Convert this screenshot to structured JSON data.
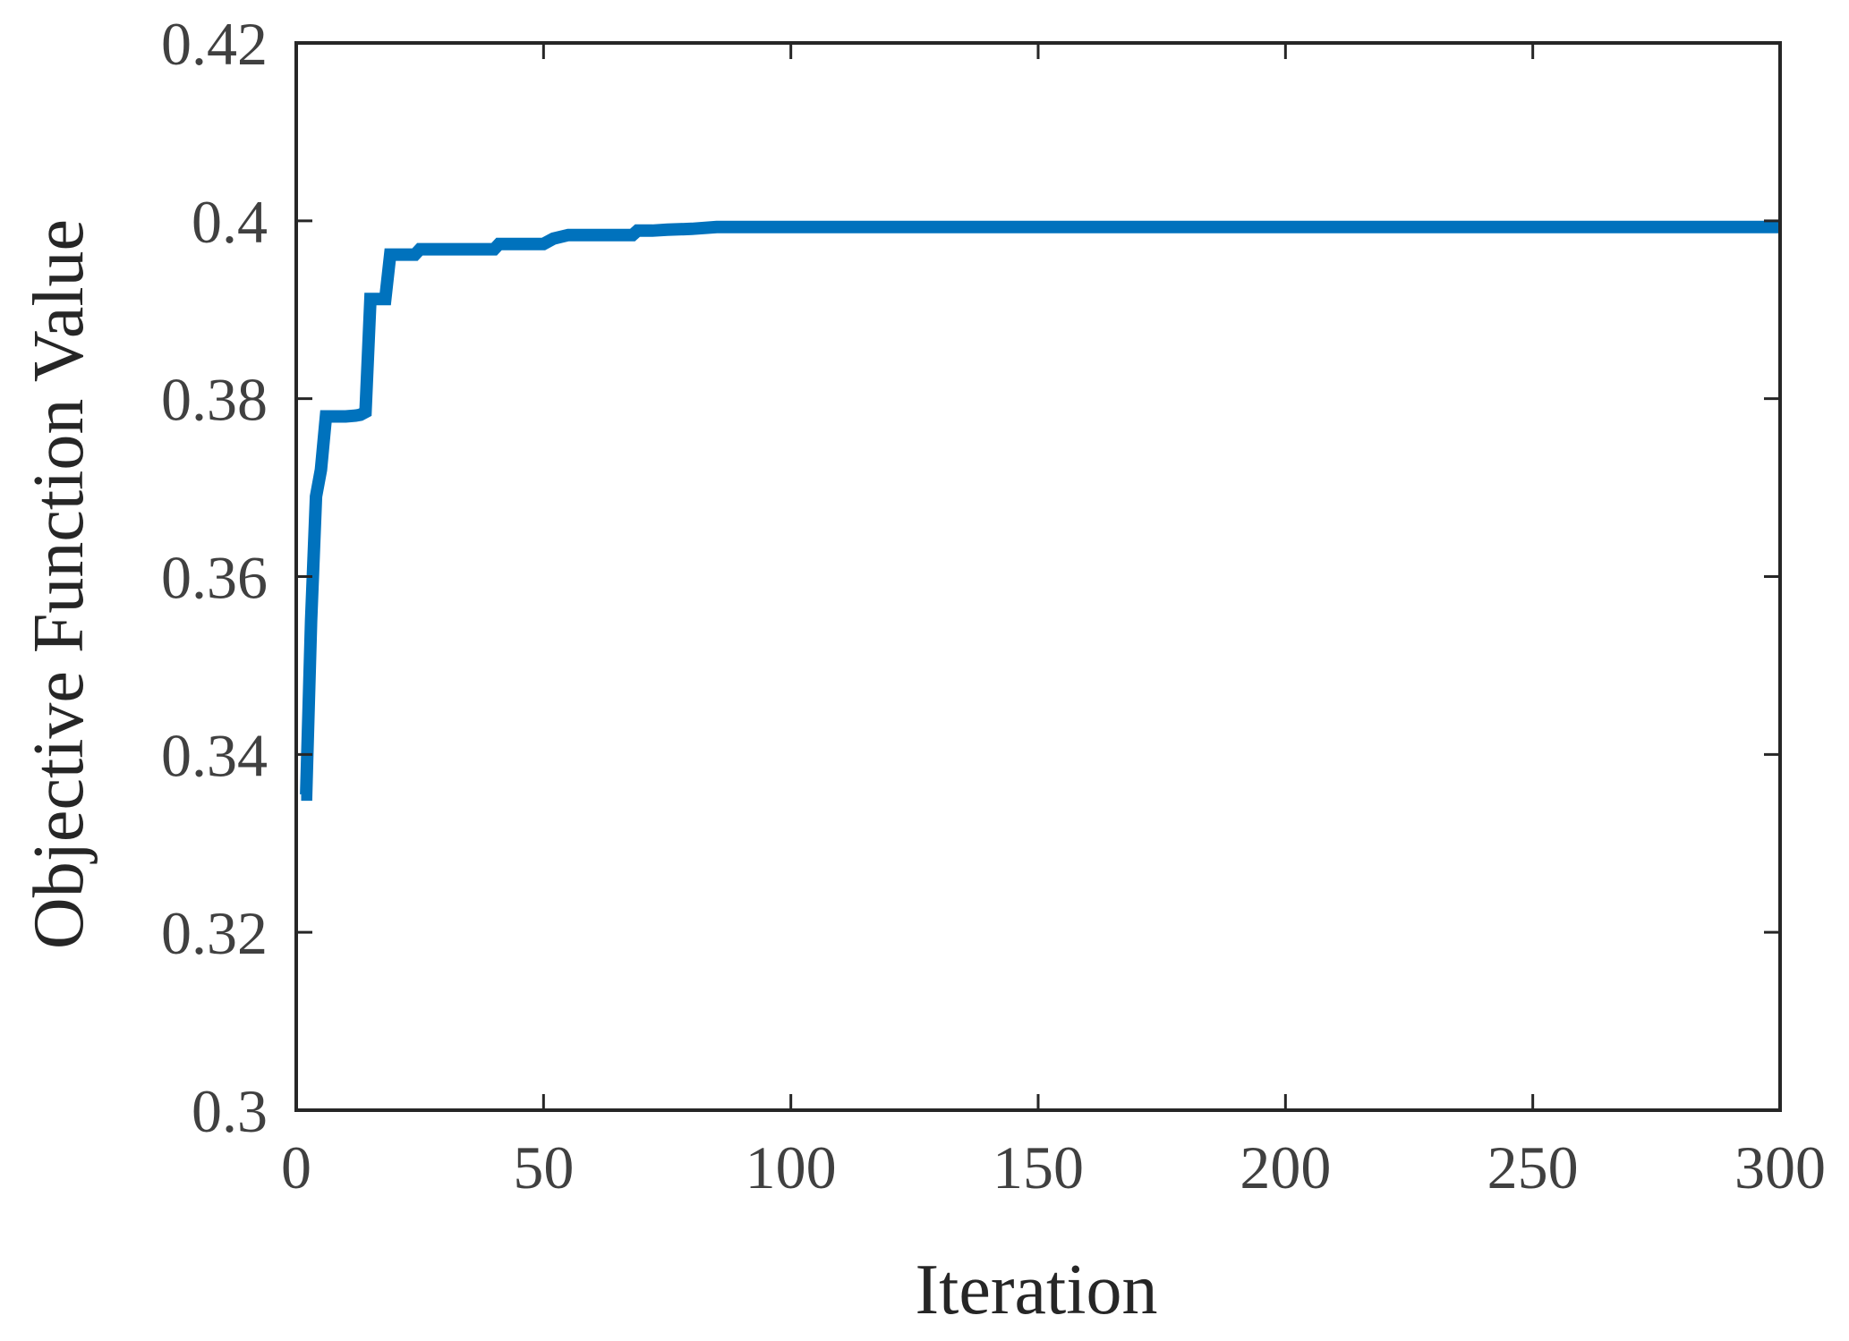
{
  "chart_data": {
    "type": "line",
    "title": "",
    "xlabel": "Iteration",
    "ylabel": "Objective Function Value",
    "xlim": [
      0,
      300
    ],
    "ylim": [
      0.3,
      0.42
    ],
    "xticks": [
      0,
      50,
      100,
      150,
      200,
      250,
      300
    ],
    "yticks": [
      0.3,
      0.32,
      0.34,
      0.36,
      0.38,
      0.4,
      0.42
    ],
    "xtick_labels": [
      "0",
      "50",
      "100",
      "150",
      "200",
      "250",
      "300"
    ],
    "ytick_labels": [
      "0.3",
      "0.32",
      "0.34",
      "0.36",
      "0.38",
      "0.4",
      "0.42"
    ],
    "grid": false,
    "series": [
      {
        "color": "#0072BD",
        "x": [
          1,
          2,
          3,
          4,
          5,
          6,
          7,
          8,
          10,
          12,
          13,
          14,
          15,
          16,
          17,
          18,
          19,
          20,
          22,
          24,
          25,
          28,
          35,
          40,
          41,
          45,
          50,
          52,
          55,
          60,
          65,
          68,
          69,
          72,
          75,
          80,
          85,
          100,
          150,
          200,
          250,
          300
        ],
        "y": [
          0.3355,
          0.3355,
          0.355,
          0.369,
          0.372,
          0.378,
          0.378,
          0.378,
          0.378,
          0.3781,
          0.3782,
          0.3785,
          0.3912,
          0.3912,
          0.3912,
          0.3912,
          0.3962,
          0.3962,
          0.3962,
          0.3962,
          0.3968,
          0.3968,
          0.3968,
          0.3968,
          0.3974,
          0.3974,
          0.3974,
          0.398,
          0.3984,
          0.3984,
          0.3984,
          0.3984,
          0.3989,
          0.3989,
          0.399,
          0.3991,
          0.3993,
          0.3993,
          0.3993,
          0.3993,
          0.3993,
          0.3993
        ]
      }
    ]
  }
}
